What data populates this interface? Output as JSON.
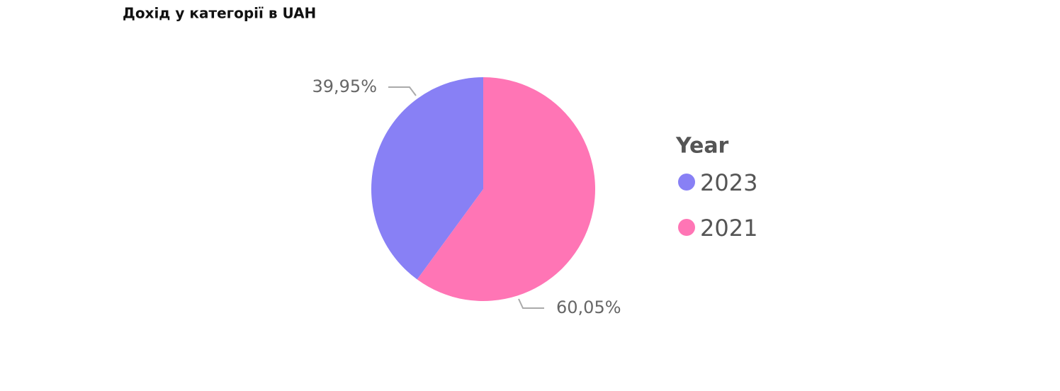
{
  "chart_data": {
    "type": "pie",
    "title": "Дохід у категорії в UAH",
    "legend_title": "Year",
    "categories": [
      "2023",
      "2021"
    ],
    "values": [
      39.95,
      60.05
    ],
    "value_labels": [
      "39,95%",
      "60,05%"
    ],
    "colors": [
      "#8880f5",
      "#ff75b5"
    ]
  }
}
